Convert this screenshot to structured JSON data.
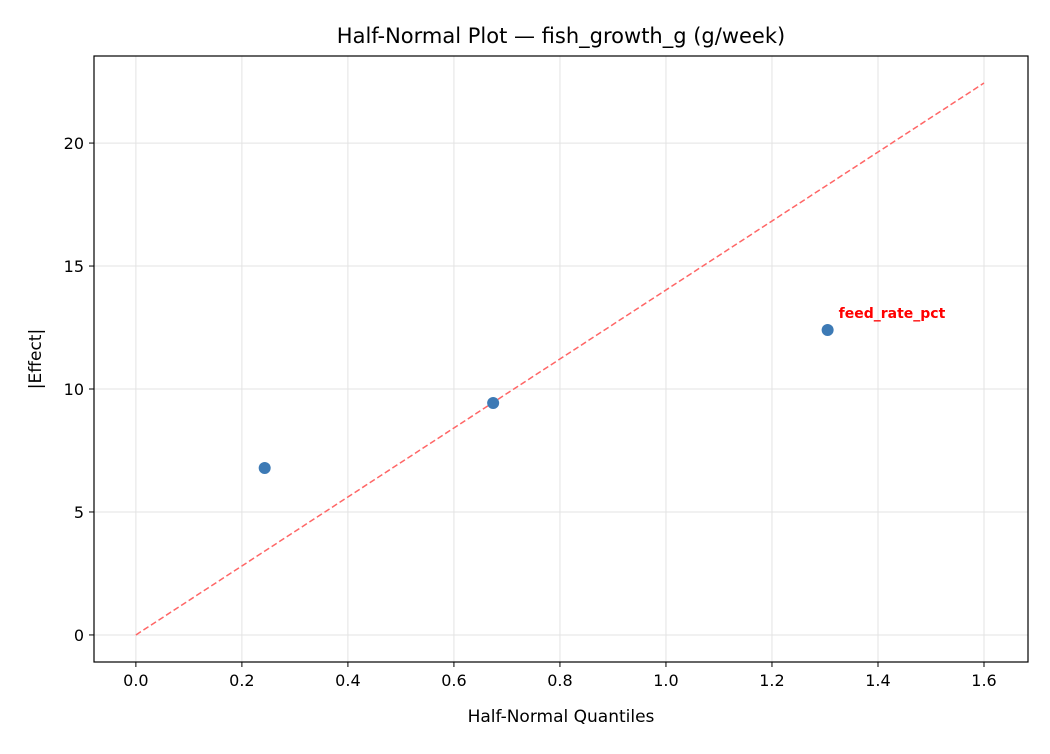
{
  "chart_data": {
    "type": "scatter",
    "title": "Half-Normal Plot — fish_growth_g (g/week)",
    "xlabel": "Half-Normal Quantiles",
    "ylabel": "|Effect|",
    "xlim": [
      -0.079,
      1.683
    ],
    "ylim": [
      -1.1,
      23.54
    ],
    "xticks": [
      0.0,
      0.2,
      0.4,
      0.6,
      0.8,
      1.0,
      1.2,
      1.4,
      1.6
    ],
    "xtick_labels": [
      "0.0",
      "0.2",
      "0.4",
      "0.6",
      "0.8",
      "1.0",
      "1.2",
      "1.4",
      "1.6"
    ],
    "yticks": [
      0,
      5,
      10,
      15,
      20
    ],
    "ytick_labels": [
      "0",
      "5",
      "10",
      "15",
      "20"
    ],
    "grid": true,
    "points": [
      {
        "x": 0.243,
        "y": 6.79
      },
      {
        "x": 0.674,
        "y": 9.43
      },
      {
        "x": 1.305,
        "y": 12.4,
        "label": "feed_rate_pct"
      }
    ],
    "reference_line": {
      "x": [
        0,
        1.6
      ],
      "y": [
        0,
        22.44
      ],
      "style": "dashed"
    },
    "colors": {
      "points": "#3d7ab5",
      "reference_line": "#ff6666",
      "annotation": "#ff0000"
    }
  }
}
